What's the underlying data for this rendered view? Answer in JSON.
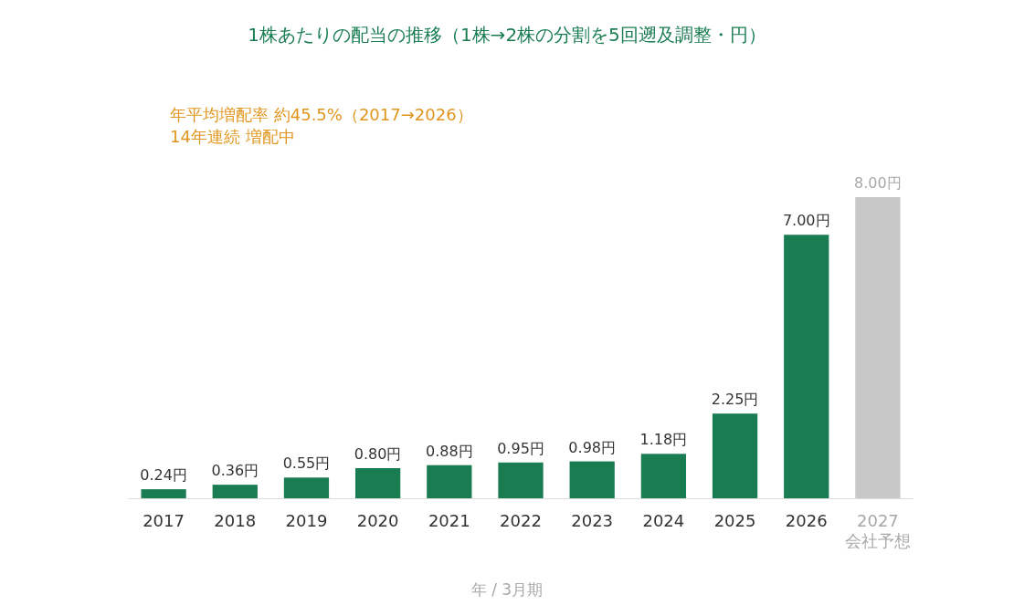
{
  "chart_data": {
    "type": "bar",
    "title": "1株あたりの配当の推移（1株→2株の分割を5回遡及調整・円）",
    "annotations": [
      "年平均増配率 約45.5%（2017→2026）",
      "14年連続 増配中"
    ],
    "xlabel": "年 / 3月期",
    "categories": [
      "2017",
      "2018",
      "2019",
      "2020",
      "2021",
      "2022",
      "2023",
      "2024",
      "2025",
      "2026",
      "2027\n会社予想"
    ],
    "values": [
      0.24,
      0.36,
      0.55,
      0.8,
      0.88,
      0.95,
      0.98,
      1.18,
      2.25,
      7.0,
      8.0
    ],
    "value_labels": [
      "0.24円",
      "0.36円",
      "0.55円",
      "0.80円",
      "0.88円",
      "0.95円",
      "0.98円",
      "1.18円",
      "2.25円",
      "7.00円",
      "8.00円"
    ],
    "colors": [
      "#1a7d52",
      "#1a7d52",
      "#1a7d52",
      "#1a7d52",
      "#1a7d52",
      "#1a7d52",
      "#1a7d52",
      "#1a7d52",
      "#1a7d52",
      "#1a7d52",
      "#c8c8c8"
    ]
  }
}
